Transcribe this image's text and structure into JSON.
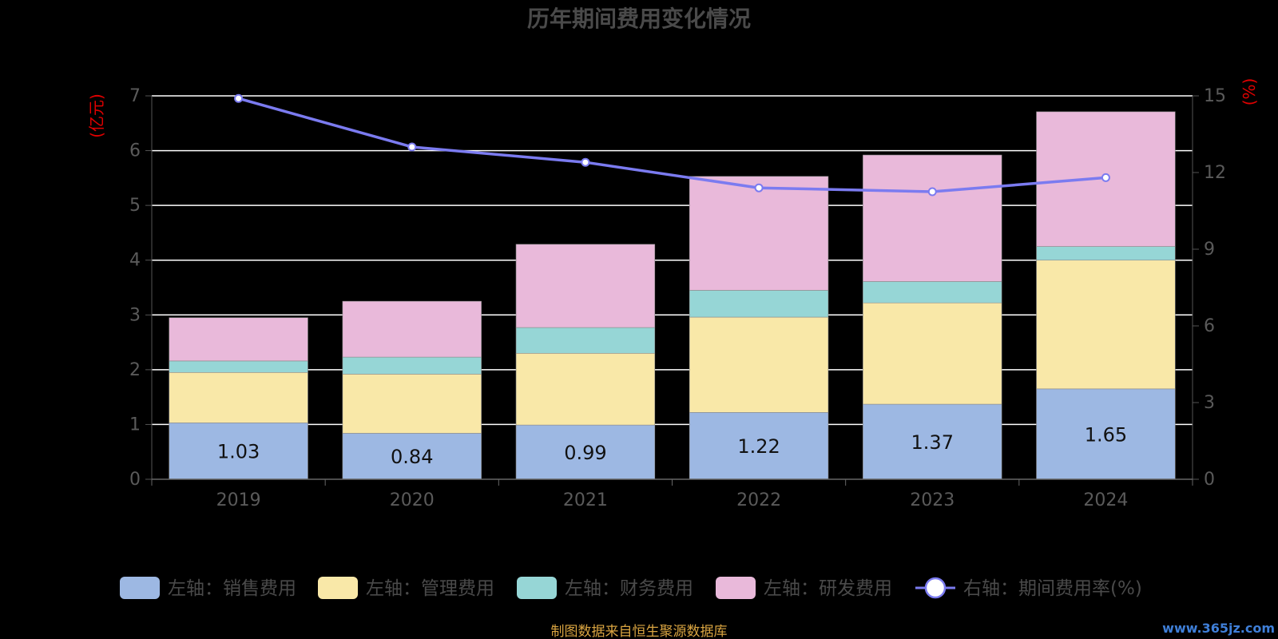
{
  "chart_data": {
    "type": "bar",
    "title": "历年期间费用变化情况",
    "categories": [
      "2019",
      "2020",
      "2021",
      "2022",
      "2023",
      "2024"
    ],
    "stacked": true,
    "y_left": {
      "label": "(亿元)",
      "range": [
        0,
        7
      ],
      "ticks": [
        "0",
        "1",
        "2",
        "3",
        "4",
        "5",
        "6",
        "7"
      ]
    },
    "y_right": {
      "label": "(%)",
      "range": [
        0,
        15
      ],
      "ticks": [
        "0",
        "3",
        "6",
        "9",
        "12",
        "15"
      ]
    },
    "grid": true,
    "legend_position": "bottom",
    "series": [
      {
        "name": "左轴：销售费用",
        "type": "bar",
        "axis": "left",
        "color": "#9db8e3",
        "values": [
          1.03,
          0.84,
          0.99,
          1.22,
          1.37,
          1.65
        ],
        "labels": [
          "1.03",
          "0.84",
          "0.99",
          "1.22",
          "1.37",
          "1.65"
        ]
      },
      {
        "name": "左轴：管理费用",
        "type": "bar",
        "axis": "left",
        "color": "#f9e8a8",
        "values": [
          0.92,
          1.08,
          1.31,
          1.74,
          1.85,
          2.35
        ]
      },
      {
        "name": "左轴：财务费用",
        "type": "bar",
        "axis": "left",
        "color": "#96d6d6",
        "values": [
          0.21,
          0.31,
          0.47,
          0.49,
          0.39,
          0.25
        ]
      },
      {
        "name": "左轴：研发费用",
        "type": "bar",
        "axis": "left",
        "color": "#e9b9da",
        "values": [
          0.79,
          1.02,
          1.52,
          2.08,
          2.31,
          2.46
        ]
      },
      {
        "name": "右轴：期间费用率(%)",
        "type": "line",
        "axis": "right",
        "color": "#7b7bf0",
        "values": [
          14.9,
          13.0,
          12.4,
          11.4,
          11.25,
          11.8
        ]
      }
    ],
    "source_note": "制图数据来自恒生聚源数据库",
    "watermark": "www.365jz.com"
  }
}
